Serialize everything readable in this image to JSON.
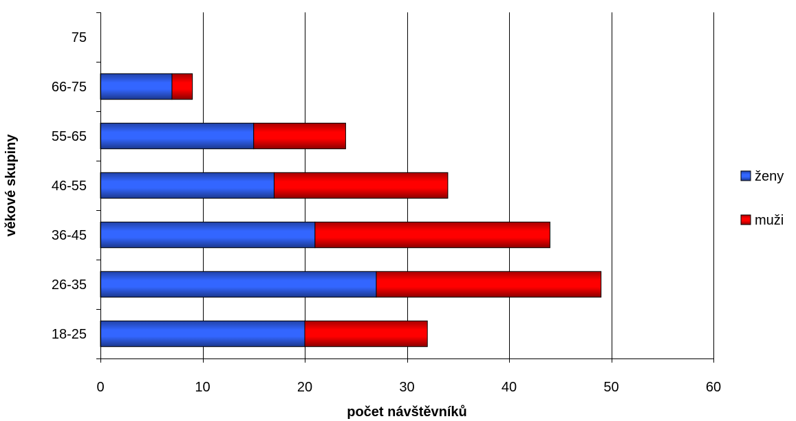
{
  "chart_data": {
    "type": "bar",
    "orientation": "horizontal",
    "stacked": true,
    "categories": [
      "18-25",
      "26-35",
      "36-45",
      "46-55",
      "55-65",
      "66-75",
      "75"
    ],
    "series": [
      {
        "name": "ženy",
        "values": [
          20,
          27,
          21,
          17,
          15,
          7,
          0
        ],
        "color": "#3366FF"
      },
      {
        "name": "muži",
        "values": [
          12,
          22,
          23,
          17,
          9,
          2,
          0
        ],
        "color": "#FF0000"
      }
    ],
    "xlim": [
      0,
      60
    ],
    "x_ticks": [
      "0",
      "10",
      "20",
      "30",
      "40",
      "50",
      "60"
    ],
    "xlabel": "počet návštěvníků",
    "ylabel": "věkové skupiny",
    "grid": "vertical",
    "legend_position": "right"
  }
}
